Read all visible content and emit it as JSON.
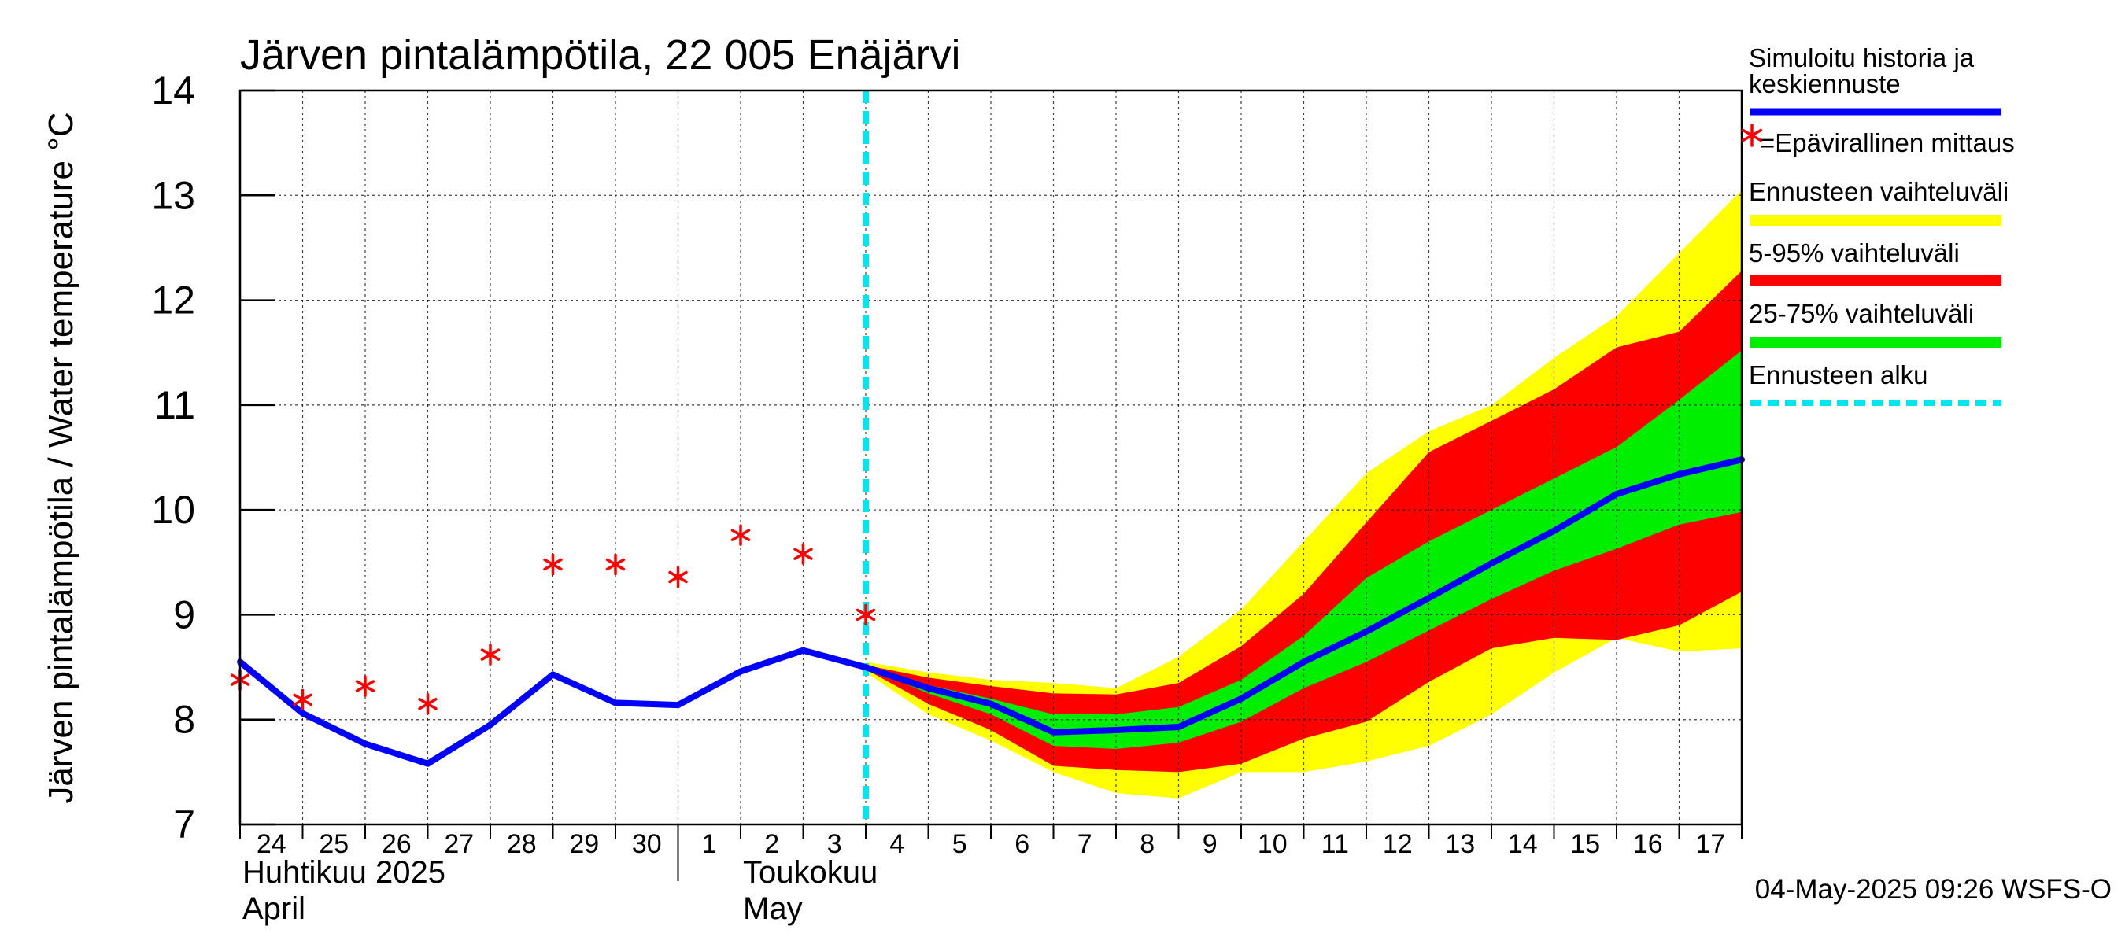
{
  "chart_data": {
    "type": "line",
    "title": "Järven pintalämpötila, 22 005 Enäjärvi",
    "ylabel": "Järven pintalämpötila / Water temperature °C",
    "ylim": [
      7,
      14
    ],
    "yticks": [
      "7",
      "8",
      "9",
      "10",
      "11",
      "12",
      "13",
      "14"
    ],
    "x_start": "2025-04-24",
    "x_end": "2025-05-17",
    "x_days": [
      "24",
      "25",
      "26",
      "27",
      "28",
      "29",
      "30",
      "1",
      "2",
      "3",
      "4",
      "5",
      "6",
      "7",
      "8",
      "9",
      "10",
      "11",
      "12",
      "13",
      "14",
      "15",
      "16",
      "17"
    ],
    "month_labels": [
      {
        "fi": "Huhtikuu  2025",
        "en": "April"
      },
      {
        "fi": "Toukokuu",
        "en": "May"
      }
    ],
    "grid": true,
    "forecast_start": "2025-05-04",
    "dates": [
      "2025-04-24",
      "2025-04-25",
      "2025-04-26",
      "2025-04-27",
      "2025-04-28",
      "2025-04-29",
      "2025-04-30",
      "2025-05-01",
      "2025-05-02",
      "2025-05-03",
      "2025-05-04",
      "2025-05-05",
      "2025-05-06",
      "2025-05-07",
      "2025-05-08",
      "2025-05-09",
      "2025-05-10",
      "2025-05-11",
      "2025-05-12",
      "2025-05-13",
      "2025-05-14",
      "2025-05-15",
      "2025-05-16",
      "2025-05-17",
      "2025-05-18"
    ],
    "series": [
      {
        "name": "Simuloitu historia ja keskiennuste",
        "color": "#0000ff",
        "values": [
          8.55,
          8.06,
          7.77,
          7.58,
          7.95,
          8.43,
          8.16,
          8.14,
          8.46,
          8.66,
          8.5,
          8.3,
          8.15,
          7.88,
          7.9,
          7.93,
          8.2,
          8.55,
          8.84,
          9.16,
          9.49,
          9.8,
          10.15,
          10.34,
          10.48
        ]
      }
    ],
    "measurements": {
      "name": "=Epävirallinen mittaus",
      "color": "#ff0000",
      "points": [
        [
          "2025-04-24",
          8.38
        ],
        [
          "2025-04-25",
          8.19
        ],
        [
          "2025-04-26",
          8.32
        ],
        [
          "2025-04-27",
          8.15
        ],
        [
          "2025-04-28",
          8.62
        ],
        [
          "2025-04-29",
          9.48
        ],
        [
          "2025-04-30",
          9.48
        ],
        [
          "2025-05-01",
          9.36
        ],
        [
          "2025-05-02",
          9.76
        ],
        [
          "2025-05-03",
          9.58
        ],
        [
          "2025-05-04",
          9.0
        ]
      ]
    },
    "bands": [
      {
        "name": "Ennusteen vaihteluväli",
        "color": "#ffff00",
        "dates": [
          "2025-05-04",
          "2025-05-05",
          "2025-05-06",
          "2025-05-07",
          "2025-05-08",
          "2025-05-09",
          "2025-05-10",
          "2025-05-11",
          "2025-05-12",
          "2025-05-13",
          "2025-05-14",
          "2025-05-15",
          "2025-05-16",
          "2025-05-17",
          "2025-05-18"
        ],
        "upper": [
          8.55,
          8.45,
          8.38,
          8.35,
          8.3,
          8.6,
          9.05,
          9.7,
          10.35,
          10.75,
          11.0,
          11.45,
          11.85,
          12.45,
          13.05
        ],
        "lower": [
          8.45,
          8.05,
          7.8,
          7.5,
          7.3,
          7.25,
          7.5,
          7.5,
          7.6,
          7.75,
          8.05,
          8.45,
          8.78,
          8.65,
          8.68
        ]
      },
      {
        "name": "5-95% vaihteluväli",
        "color": "#ff0000",
        "dates": [
          "2025-05-04",
          "2025-05-05",
          "2025-05-06",
          "2025-05-07",
          "2025-05-08",
          "2025-05-09",
          "2025-05-10",
          "2025-05-11",
          "2025-05-12",
          "2025-05-13",
          "2025-05-14",
          "2025-05-15",
          "2025-05-16",
          "2025-05-17",
          "2025-05-18"
        ],
        "upper": [
          8.52,
          8.4,
          8.32,
          8.25,
          8.24,
          8.35,
          8.7,
          9.2,
          9.88,
          10.55,
          10.85,
          11.15,
          11.55,
          11.7,
          12.28
        ],
        "lower": [
          8.48,
          8.15,
          7.9,
          7.56,
          7.52,
          7.5,
          7.58,
          7.82,
          7.98,
          8.36,
          8.68,
          8.78,
          8.76,
          8.9,
          9.22
        ]
      },
      {
        "name": "25-75% vaihteluväli",
        "color": "#00ee00",
        "dates": [
          "2025-05-04",
          "2025-05-05",
          "2025-05-06",
          "2025-05-07",
          "2025-05-08",
          "2025-05-09",
          "2025-05-10",
          "2025-05-11",
          "2025-05-12",
          "2025-05-13",
          "2025-05-14",
          "2025-05-15",
          "2025-05-16",
          "2025-05-17",
          "2025-05-18"
        ],
        "upper": [
          8.5,
          8.33,
          8.2,
          8.05,
          8.05,
          8.12,
          8.38,
          8.8,
          9.35,
          9.7,
          10.0,
          10.3,
          10.6,
          11.05,
          11.52
        ],
        "lower": [
          8.5,
          8.25,
          8.05,
          7.75,
          7.72,
          7.78,
          7.98,
          8.3,
          8.55,
          8.85,
          9.15,
          9.42,
          9.63,
          9.86,
          9.98
        ]
      }
    ],
    "legend": {
      "placement": "right",
      "items": [
        {
          "label_lines": [
            "Simuloitu historia ja",
            "keskiennuste"
          ],
          "kind": "line",
          "color": "#0000ff"
        },
        {
          "label_lines": [
            "=Epävirallinen mittaus"
          ],
          "kind": "marker",
          "color": "#ff0000"
        },
        {
          "label_lines": [
            "Ennusteen vaihteluväli"
          ],
          "kind": "band",
          "color": "#ffff00"
        },
        {
          "label_lines": [
            "5-95% vaihteluväli"
          ],
          "kind": "band",
          "color": "#ff0000"
        },
        {
          "label_lines": [
            "25-75% vaihteluväli"
          ],
          "kind": "band",
          "color": "#00ee00"
        },
        {
          "label_lines": [
            "Ennusteen alku"
          ],
          "kind": "dashed",
          "color": "#00e5ee"
        }
      ]
    },
    "footer": "04-May-2025 09:26 WSFS-O"
  }
}
